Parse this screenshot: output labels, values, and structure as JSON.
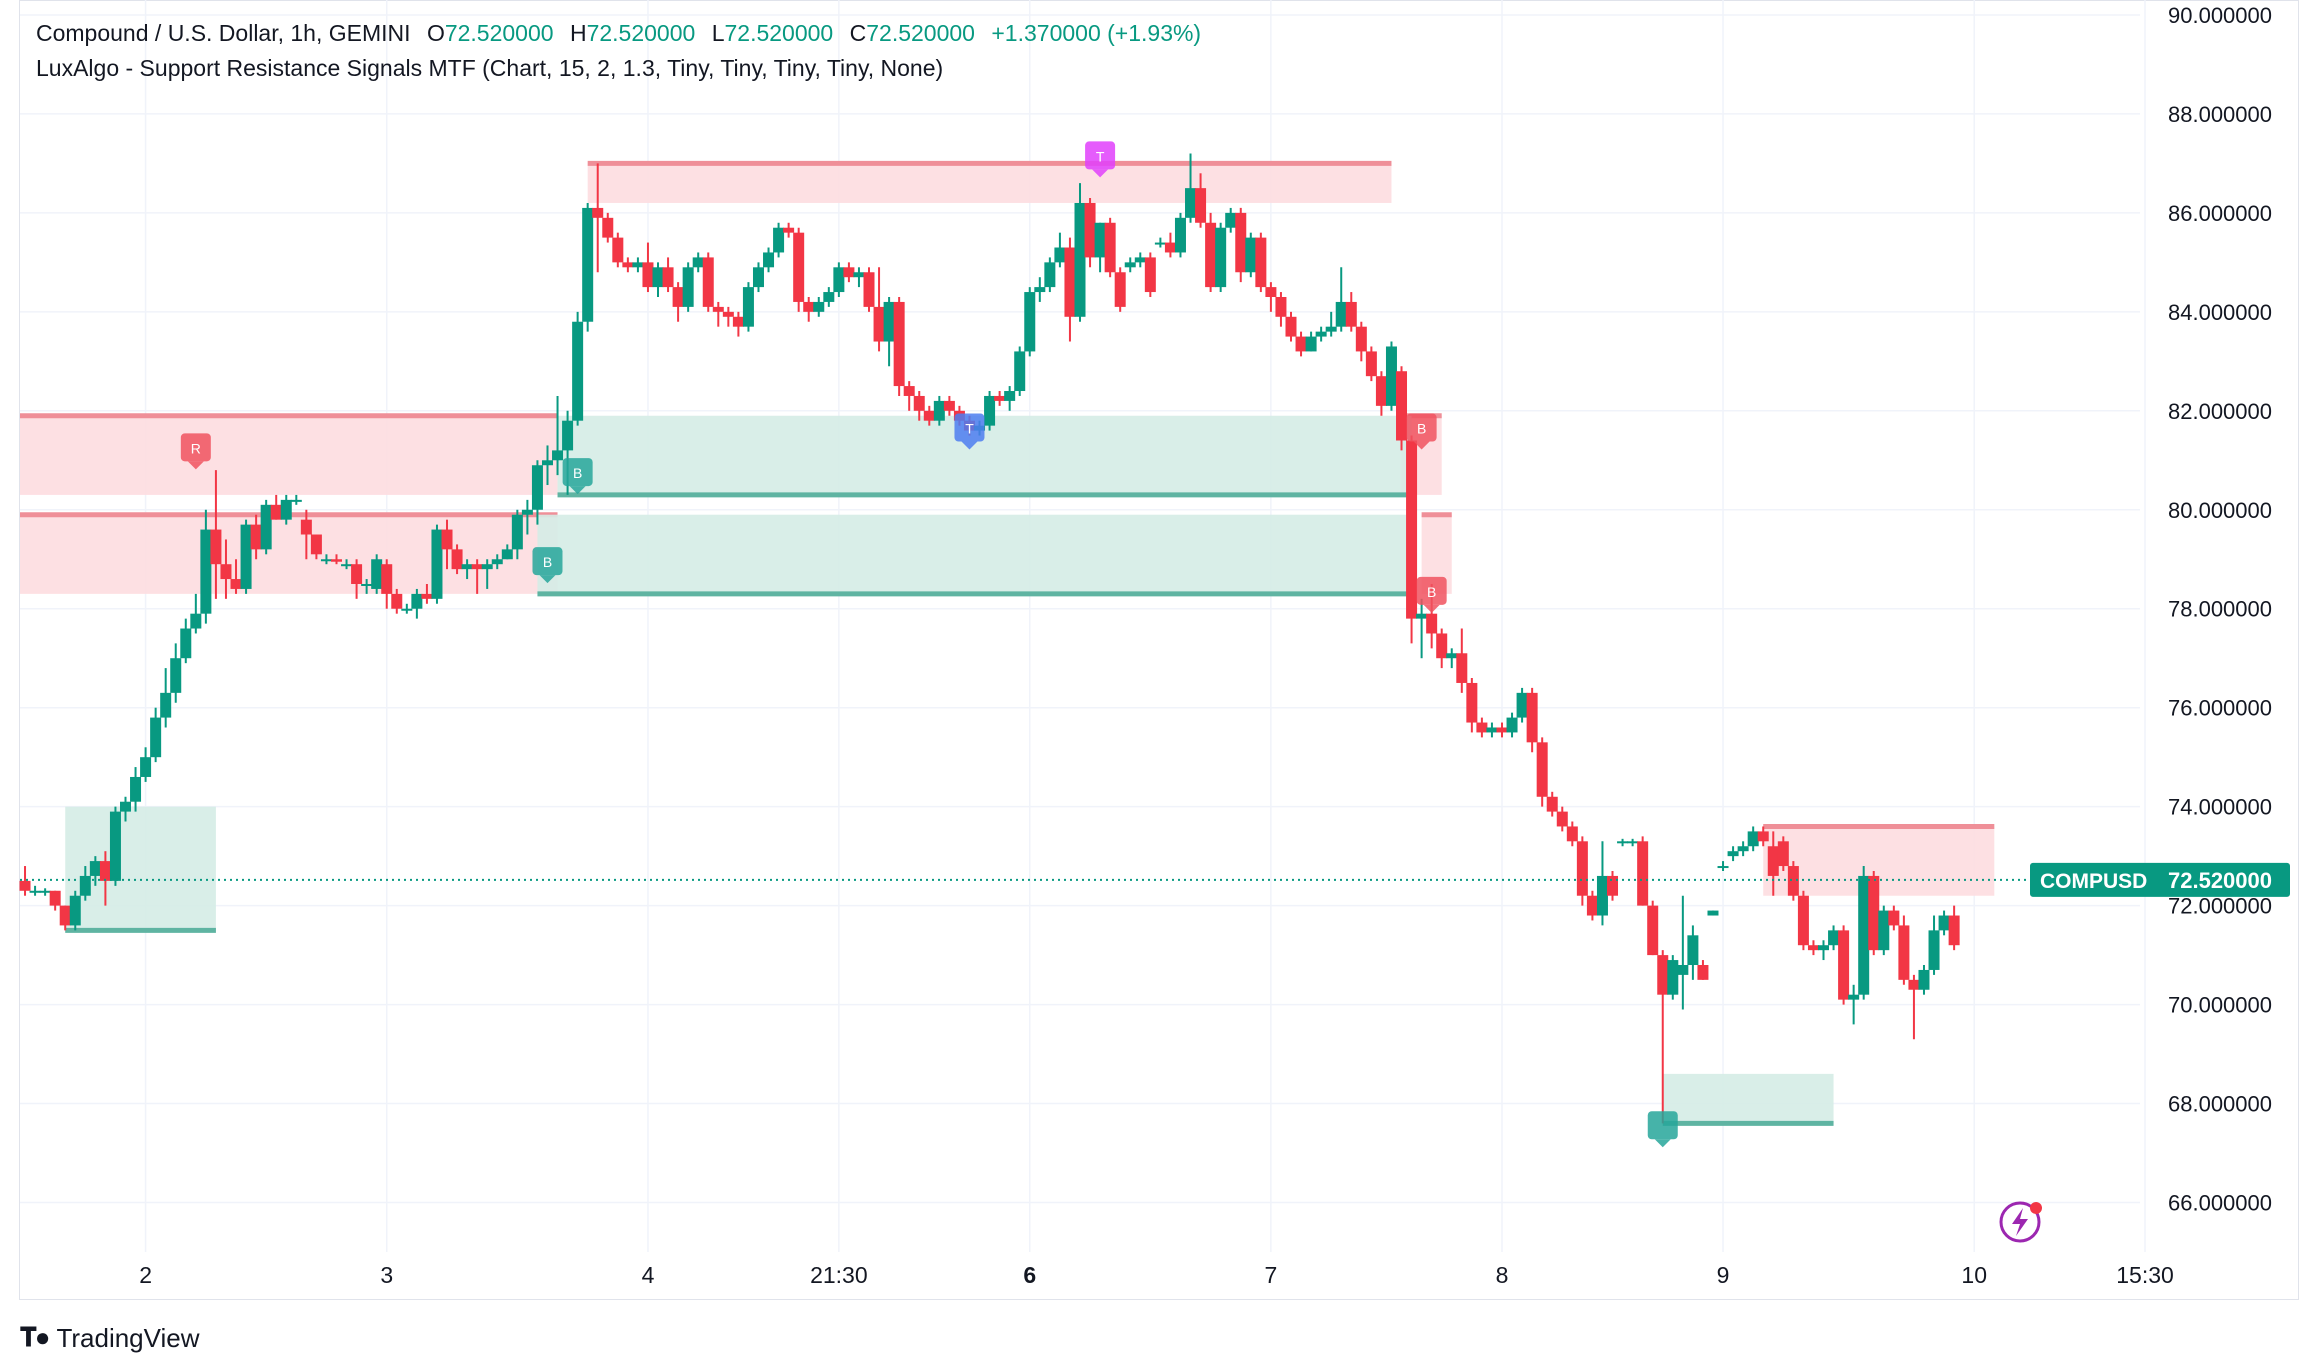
{
  "header": {
    "symbol_title": "Compound / U.S. Dollar, 1h, GEMINI",
    "ohlc": [
      {
        "k": "O",
        "v": "72.520000"
      },
      {
        "k": "H",
        "v": "72.520000"
      },
      {
        "k": "L",
        "v": "72.520000"
      },
      {
        "k": "C",
        "v": "72.520000"
      }
    ],
    "change": "+1.370000 (+1.93%)",
    "indicator": "LuxAlgo - Support Resistance Signals MTF (Chart, 15, 2, 1.3, Tiny, Tiny, Tiny, Tiny, None)"
  },
  "branding": {
    "name": "TradingView"
  },
  "colors": {
    "up": "#089981",
    "down": "#f23645",
    "support_fill": "#d5ece6",
    "support_line": "#5fb4a2",
    "resistance_fill": "#fddde0",
    "resistance_line": "#ef8f98",
    "grid": "#f0f3fa",
    "text": "#131722"
  },
  "chart_data": {
    "type": "candlestick",
    "symbol": "COMPUSD",
    "last_price": 72.52,
    "last_price_label": "72.520000",
    "ylim": [
      65.0,
      90.1
    ],
    "y_ticks": [
      "66.000000",
      "68.000000",
      "70.000000",
      "72.000000",
      "74.000000",
      "76.000000",
      "78.000000",
      "80.000000",
      "82.000000",
      "84.000000",
      "86.000000",
      "88.000000",
      "90.000000"
    ],
    "x_labels": [
      {
        "label": "2",
        "bar": 12,
        "bold": false
      },
      {
        "label": "3",
        "bar": 36,
        "bold": false
      },
      {
        "label": "4",
        "bar": 62,
        "bold": false
      },
      {
        "label": "21:30",
        "bar": 81,
        "bold": false
      },
      {
        "label": "6",
        "bar": 100,
        "bold": true
      },
      {
        "label": "7",
        "bar": 124,
        "bold": false
      },
      {
        "label": "8",
        "bar": 147,
        "bold": false
      },
      {
        "label": "9",
        "bar": 169,
        "bold": false
      },
      {
        "label": "10",
        "bar": 194,
        "bold": false
      },
      {
        "label": "15:30",
        "bar": 211,
        "bold": false
      }
    ],
    "candles": [
      [
        72.5,
        72.8,
        72.2,
        72.3
      ],
      [
        72.3,
        72.4,
        72.2,
        72.3
      ],
      [
        72.3,
        72.35,
        72.2,
        72.3
      ],
      [
        72.3,
        72.3,
        71.9,
        72.0
      ],
      [
        72.0,
        72.0,
        71.5,
        71.6
      ],
      [
        71.6,
        72.3,
        71.5,
        72.2
      ],
      [
        72.2,
        72.8,
        72.1,
        72.6
      ],
      [
        72.6,
        73.0,
        72.4,
        72.9
      ],
      [
        72.9,
        73.1,
        72.0,
        72.5
      ],
      [
        72.5,
        74.0,
        72.4,
        73.9
      ],
      [
        73.9,
        74.2,
        73.7,
        74.1
      ],
      [
        74.1,
        74.8,
        73.9,
        74.6
      ],
      [
        74.6,
        75.2,
        74.5,
        75.0
      ],
      [
        75.0,
        76.0,
        74.9,
        75.8
      ],
      [
        75.8,
        76.8,
        75.6,
        76.3
      ],
      [
        76.3,
        77.3,
        76.1,
        77.0
      ],
      [
        77.0,
        77.8,
        76.9,
        77.6
      ],
      [
        77.6,
        78.3,
        77.5,
        77.9
      ],
      [
        77.9,
        80.0,
        77.7,
        79.6
      ],
      [
        79.6,
        80.8,
        78.2,
        78.9
      ],
      [
        78.9,
        79.4,
        78.2,
        78.6
      ],
      [
        78.6,
        79.0,
        78.3,
        78.4
      ],
      [
        78.4,
        79.8,
        78.3,
        79.7
      ],
      [
        79.7,
        79.9,
        79.0,
        79.2
      ],
      [
        79.2,
        80.2,
        79.1,
        80.1
      ],
      [
        80.1,
        80.3,
        79.8,
        79.8
      ],
      [
        79.8,
        80.3,
        79.7,
        80.2
      ],
      [
        80.2,
        80.3,
        80.1,
        80.2
      ],
      [
        79.8,
        80.0,
        79.0,
        79.5
      ],
      [
        79.5,
        79.5,
        79.0,
        79.1
      ],
      [
        79.0,
        79.1,
        78.9,
        79.0
      ],
      [
        79.0,
        79.1,
        78.9,
        78.95
      ],
      [
        78.9,
        79.0,
        78.8,
        78.9
      ],
      [
        78.9,
        79.0,
        78.2,
        78.5
      ],
      [
        78.5,
        78.6,
        78.3,
        78.5
      ],
      [
        78.4,
        79.1,
        78.3,
        79.0
      ],
      [
        78.9,
        79.0,
        78.0,
        78.3
      ],
      [
        78.3,
        78.4,
        77.9,
        78.0
      ],
      [
        78.0,
        78.1,
        77.9,
        78.0
      ],
      [
        78.0,
        78.4,
        77.8,
        78.3
      ],
      [
        78.3,
        78.5,
        78.1,
        78.2
      ],
      [
        78.2,
        79.7,
        78.1,
        79.6
      ],
      [
        79.6,
        79.8,
        78.8,
        79.2
      ],
      [
        79.2,
        79.3,
        78.7,
        78.8
      ],
      [
        78.8,
        79.0,
        78.6,
        78.9
      ],
      [
        78.9,
        79.0,
        78.3,
        78.8
      ],
      [
        78.8,
        79.0,
        78.4,
        78.9
      ],
      [
        78.9,
        79.1,
        78.8,
        79.0
      ],
      [
        79.0,
        79.3,
        79.0,
        79.2
      ],
      [
        79.2,
        80.0,
        79.0,
        79.9
      ],
      [
        79.9,
        80.2,
        79.5,
        80.0
      ],
      [
        80.0,
        81.0,
        79.7,
        80.9
      ],
      [
        80.9,
        81.3,
        80.5,
        81.0
      ],
      [
        81.0,
        82.3,
        80.7,
        81.2
      ],
      [
        81.2,
        82.0,
        80.3,
        81.8
      ],
      [
        81.8,
        84.0,
        81.7,
        83.8
      ],
      [
        83.8,
        86.2,
        83.6,
        86.1
      ],
      [
        86.1,
        87.0,
        84.8,
        85.9
      ],
      [
        85.9,
        86.0,
        85.4,
        85.5
      ],
      [
        85.5,
        85.6,
        84.9,
        85.0
      ],
      [
        85.0,
        85.1,
        84.8,
        84.9
      ],
      [
        84.9,
        85.1,
        84.8,
        85.0
      ],
      [
        85.0,
        85.4,
        84.4,
        84.5
      ],
      [
        84.5,
        85.0,
        84.3,
        84.9
      ],
      [
        84.9,
        85.1,
        84.4,
        84.5
      ],
      [
        84.5,
        84.6,
        83.8,
        84.1
      ],
      [
        84.1,
        85.0,
        84.0,
        84.9
      ],
      [
        84.9,
        85.2,
        84.8,
        85.1
      ],
      [
        85.1,
        85.2,
        84.0,
        84.1
      ],
      [
        84.1,
        84.2,
        83.7,
        84.0
      ],
      [
        84.0,
        84.1,
        83.7,
        83.9
      ],
      [
        83.9,
        84.0,
        83.5,
        83.7
      ],
      [
        83.7,
        84.6,
        83.6,
        84.5
      ],
      [
        84.5,
        85.0,
        84.4,
        84.9
      ],
      [
        84.9,
        85.3,
        84.8,
        85.2
      ],
      [
        85.2,
        85.8,
        85.1,
        85.7
      ],
      [
        85.7,
        85.8,
        85.5,
        85.6
      ],
      [
        85.6,
        85.7,
        84.0,
        84.2
      ],
      [
        84.2,
        84.3,
        83.8,
        84.0
      ],
      [
        84.0,
        84.3,
        83.9,
        84.2
      ],
      [
        84.2,
        84.5,
        84.1,
        84.4
      ],
      [
        84.4,
        85.0,
        84.3,
        84.9
      ],
      [
        84.9,
        85.0,
        84.6,
        84.7
      ],
      [
        84.7,
        84.9,
        84.5,
        84.8
      ],
      [
        84.8,
        84.9,
        84.0,
        84.1
      ],
      [
        84.1,
        84.9,
        83.2,
        83.4
      ],
      [
        83.4,
        84.3,
        82.9,
        84.2
      ],
      [
        84.2,
        84.3,
        82.3,
        82.5
      ],
      [
        82.5,
        82.6,
        82.0,
        82.3
      ],
      [
        82.3,
        82.4,
        81.8,
        82.0
      ],
      [
        82.0,
        82.1,
        81.7,
        81.8
      ],
      [
        81.8,
        82.3,
        81.7,
        82.2
      ],
      [
        82.2,
        82.3,
        81.9,
        82.0
      ],
      [
        82.0,
        82.1,
        81.7,
        81.8
      ],
      [
        81.8,
        81.9,
        81.5,
        81.6
      ],
      [
        81.6,
        81.8,
        81.5,
        81.7
      ],
      [
        81.7,
        82.4,
        81.6,
        82.3
      ],
      [
        82.3,
        82.4,
        82.1,
        82.2
      ],
      [
        82.2,
        82.5,
        82.0,
        82.4
      ],
      [
        82.4,
        83.3,
        82.3,
        83.2
      ],
      [
        83.2,
        84.5,
        83.1,
        84.4
      ],
      [
        84.4,
        84.7,
        84.2,
        84.5
      ],
      [
        84.5,
        85.1,
        84.4,
        85.0
      ],
      [
        85.0,
        85.6,
        84.9,
        85.3
      ],
      [
        85.3,
        85.5,
        83.4,
        83.9
      ],
      [
        83.9,
        86.6,
        83.8,
        86.2
      ],
      [
        86.2,
        86.3,
        84.9,
        85.1
      ],
      [
        85.1,
        85.8,
        84.8,
        85.8
      ],
      [
        85.8,
        85.9,
        84.7,
        84.8
      ],
      [
        84.8,
        84.9,
        84.0,
        84.1
      ],
      [
        84.9,
        85.1,
        84.8,
        85.0
      ],
      [
        85.0,
        85.2,
        84.9,
        85.1
      ],
      [
        85.1,
        85.2,
        84.3,
        84.4
      ],
      [
        85.4,
        85.5,
        85.3,
        85.4
      ],
      [
        85.4,
        85.6,
        85.1,
        85.2
      ],
      [
        85.2,
        86.0,
        85.1,
        85.9
      ],
      [
        85.9,
        87.2,
        85.8,
        86.5
      ],
      [
        86.5,
        86.8,
        85.7,
        85.8
      ],
      [
        85.8,
        86.0,
        84.4,
        84.5
      ],
      [
        84.5,
        85.8,
        84.4,
        85.7
      ],
      [
        85.7,
        86.1,
        85.6,
        86.0
      ],
      [
        86.0,
        86.1,
        84.6,
        84.8
      ],
      [
        84.8,
        85.6,
        84.7,
        85.5
      ],
      [
        85.5,
        85.6,
        84.4,
        84.5
      ],
      [
        84.5,
        84.6,
        84.0,
        84.3
      ],
      [
        84.3,
        84.4,
        83.7,
        83.9
      ],
      [
        83.9,
        84.0,
        83.4,
        83.5
      ],
      [
        83.5,
        83.6,
        83.1,
        83.2
      ],
      [
        83.2,
        83.6,
        83.2,
        83.5
      ],
      [
        83.5,
        83.7,
        83.4,
        83.6
      ],
      [
        83.6,
        84.0,
        83.5,
        83.7
      ],
      [
        83.7,
        84.9,
        83.6,
        84.2
      ],
      [
        84.2,
        84.4,
        83.6,
        83.7
      ],
      [
        83.7,
        83.8,
        83.0,
        83.2
      ],
      [
        83.2,
        83.3,
        82.6,
        82.7
      ],
      [
        82.7,
        82.8,
        81.9,
        82.1
      ],
      [
        82.1,
        83.4,
        82.0,
        83.3
      ],
      [
        82.8,
        82.9,
        81.2,
        81.4
      ],
      [
        81.4,
        81.5,
        77.3,
        77.8
      ],
      [
        77.8,
        78.2,
        77.0,
        77.9
      ],
      [
        77.9,
        78.5,
        77.2,
        77.5
      ],
      [
        77.5,
        77.6,
        76.8,
        77.0
      ],
      [
        77.0,
        77.2,
        76.8,
        77.1
      ],
      [
        77.1,
        77.6,
        76.3,
        76.5
      ],
      [
        76.5,
        76.6,
        75.5,
        75.7
      ],
      [
        75.7,
        75.8,
        75.4,
        75.5
      ],
      [
        75.5,
        75.7,
        75.4,
        75.6
      ],
      [
        75.6,
        75.7,
        75.4,
        75.5
      ],
      [
        75.5,
        75.9,
        75.4,
        75.8
      ],
      [
        75.8,
        76.4,
        75.7,
        76.3
      ],
      [
        76.3,
        76.4,
        75.1,
        75.3
      ],
      [
        75.3,
        75.4,
        74.0,
        74.2
      ],
      [
        74.2,
        74.3,
        73.8,
        73.9
      ],
      [
        73.9,
        74.0,
        73.5,
        73.6
      ],
      [
        73.6,
        73.7,
        73.2,
        73.3
      ],
      [
        73.3,
        73.4,
        72.0,
        72.2
      ],
      [
        72.2,
        72.3,
        71.7,
        71.8
      ],
      [
        71.8,
        73.3,
        71.6,
        72.6
      ],
      [
        72.6,
        72.7,
        72.1,
        72.2
      ],
      [
        73.3,
        73.35,
        73.2,
        73.3
      ],
      [
        73.3,
        73.35,
        73.2,
        73.3
      ],
      [
        73.3,
        73.4,
        72.0,
        72.0
      ],
      [
        72.0,
        72.1,
        71.0,
        71.0
      ],
      [
        71.0,
        71.1,
        67.6,
        70.2
      ],
      [
        70.2,
        71.0,
        70.1,
        70.9
      ],
      [
        70.6,
        72.2,
        69.9,
        70.8
      ],
      [
        70.8,
        71.6,
        70.5,
        71.4
      ],
      [
        70.8,
        70.9,
        70.5,
        70.5
      ],
      [
        71.8,
        71.9,
        71.8,
        71.9
      ],
      [
        72.8,
        72.9,
        72.7,
        72.8
      ],
      [
        73.0,
        73.2,
        72.9,
        73.1
      ],
      [
        73.1,
        73.3,
        73.0,
        73.2
      ],
      [
        73.2,
        73.6,
        73.1,
        73.5
      ],
      [
        73.5,
        73.6,
        73.2,
        73.3
      ],
      [
        73.2,
        73.5,
        72.2,
        72.6
      ],
      [
        73.3,
        73.4,
        72.7,
        72.8
      ],
      [
        72.8,
        72.9,
        72.1,
        72.2
      ],
      [
        72.2,
        72.3,
        71.1,
        71.2
      ],
      [
        71.2,
        71.3,
        71.0,
        71.1
      ],
      [
        71.1,
        71.3,
        70.9,
        71.2
      ],
      [
        71.2,
        71.6,
        71.1,
        71.5
      ],
      [
        71.5,
        71.6,
        70.0,
        70.1
      ],
      [
        70.1,
        70.4,
        69.6,
        70.2
      ],
      [
        70.2,
        72.8,
        70.1,
        72.6
      ],
      [
        72.6,
        72.7,
        71.0,
        71.1
      ],
      [
        71.1,
        72.0,
        71.0,
        71.9
      ],
      [
        71.9,
        72.0,
        71.5,
        71.6
      ],
      [
        71.6,
        71.8,
        70.4,
        70.5
      ],
      [
        70.5,
        70.6,
        69.3,
        70.3
      ],
      [
        70.3,
        70.8,
        70.2,
        70.7
      ],
      [
        70.7,
        71.8,
        70.6,
        71.5
      ],
      [
        71.5,
        71.9,
        71.4,
        71.8
      ],
      [
        71.8,
        72.0,
        71.1,
        71.2
      ]
    ],
    "zones": [
      {
        "kind": "resistance",
        "x0": -5,
        "x1": 53,
        "top": 81.9,
        "bottom": 80.3
      },
      {
        "kind": "resistance",
        "x0": -5,
        "x1": 53,
        "top": 79.9,
        "bottom": 78.3
      },
      {
        "kind": "resistance",
        "x0": 56,
        "x1": 136,
        "top": 87.0,
        "bottom": 86.2
      },
      {
        "kind": "resistance",
        "x0": 137,
        "x1": 141,
        "top": 81.9,
        "bottom": 80.3
      },
      {
        "kind": "resistance",
        "x0": 139,
        "x1": 142,
        "top": 79.9,
        "bottom": 78.3
      },
      {
        "kind": "resistance",
        "x0": 173,
        "x1": 196,
        "top": 73.6,
        "bottom": 72.2
      },
      {
        "kind": "support",
        "x0": 4,
        "x1": 19,
        "top": 74.0,
        "bottom": 71.5
      },
      {
        "kind": "support",
        "x0": 53,
        "x1": 138,
        "top": 81.9,
        "bottom": 80.3
      },
      {
        "kind": "support",
        "x0": 51,
        "x1": 138,
        "top": 79.9,
        "bottom": 78.3
      },
      {
        "kind": "support",
        "x0": 163,
        "x1": 180,
        "top": 68.6,
        "bottom": 67.6
      }
    ],
    "markers": [
      {
        "text": "R",
        "bar": 17,
        "price": 81.1,
        "style": "down"
      },
      {
        "text": "T",
        "bar": 107,
        "price": 87.0,
        "style": "pink"
      },
      {
        "text": "T",
        "bar": 94,
        "price": 81.5,
        "style": "blue"
      },
      {
        "text": "B",
        "bar": 55,
        "price": 80.6,
        "style": "up"
      },
      {
        "text": "B",
        "bar": 52,
        "price": 78.8,
        "style": "up"
      },
      {
        "text": "B",
        "bar": 139,
        "price": 81.5,
        "style": "down"
      },
      {
        "text": "B",
        "bar": 140,
        "price": 78.2,
        "style": "down"
      },
      {
        "text": "",
        "bar": 163,
        "price": 67.4,
        "style": "up"
      }
    ]
  }
}
